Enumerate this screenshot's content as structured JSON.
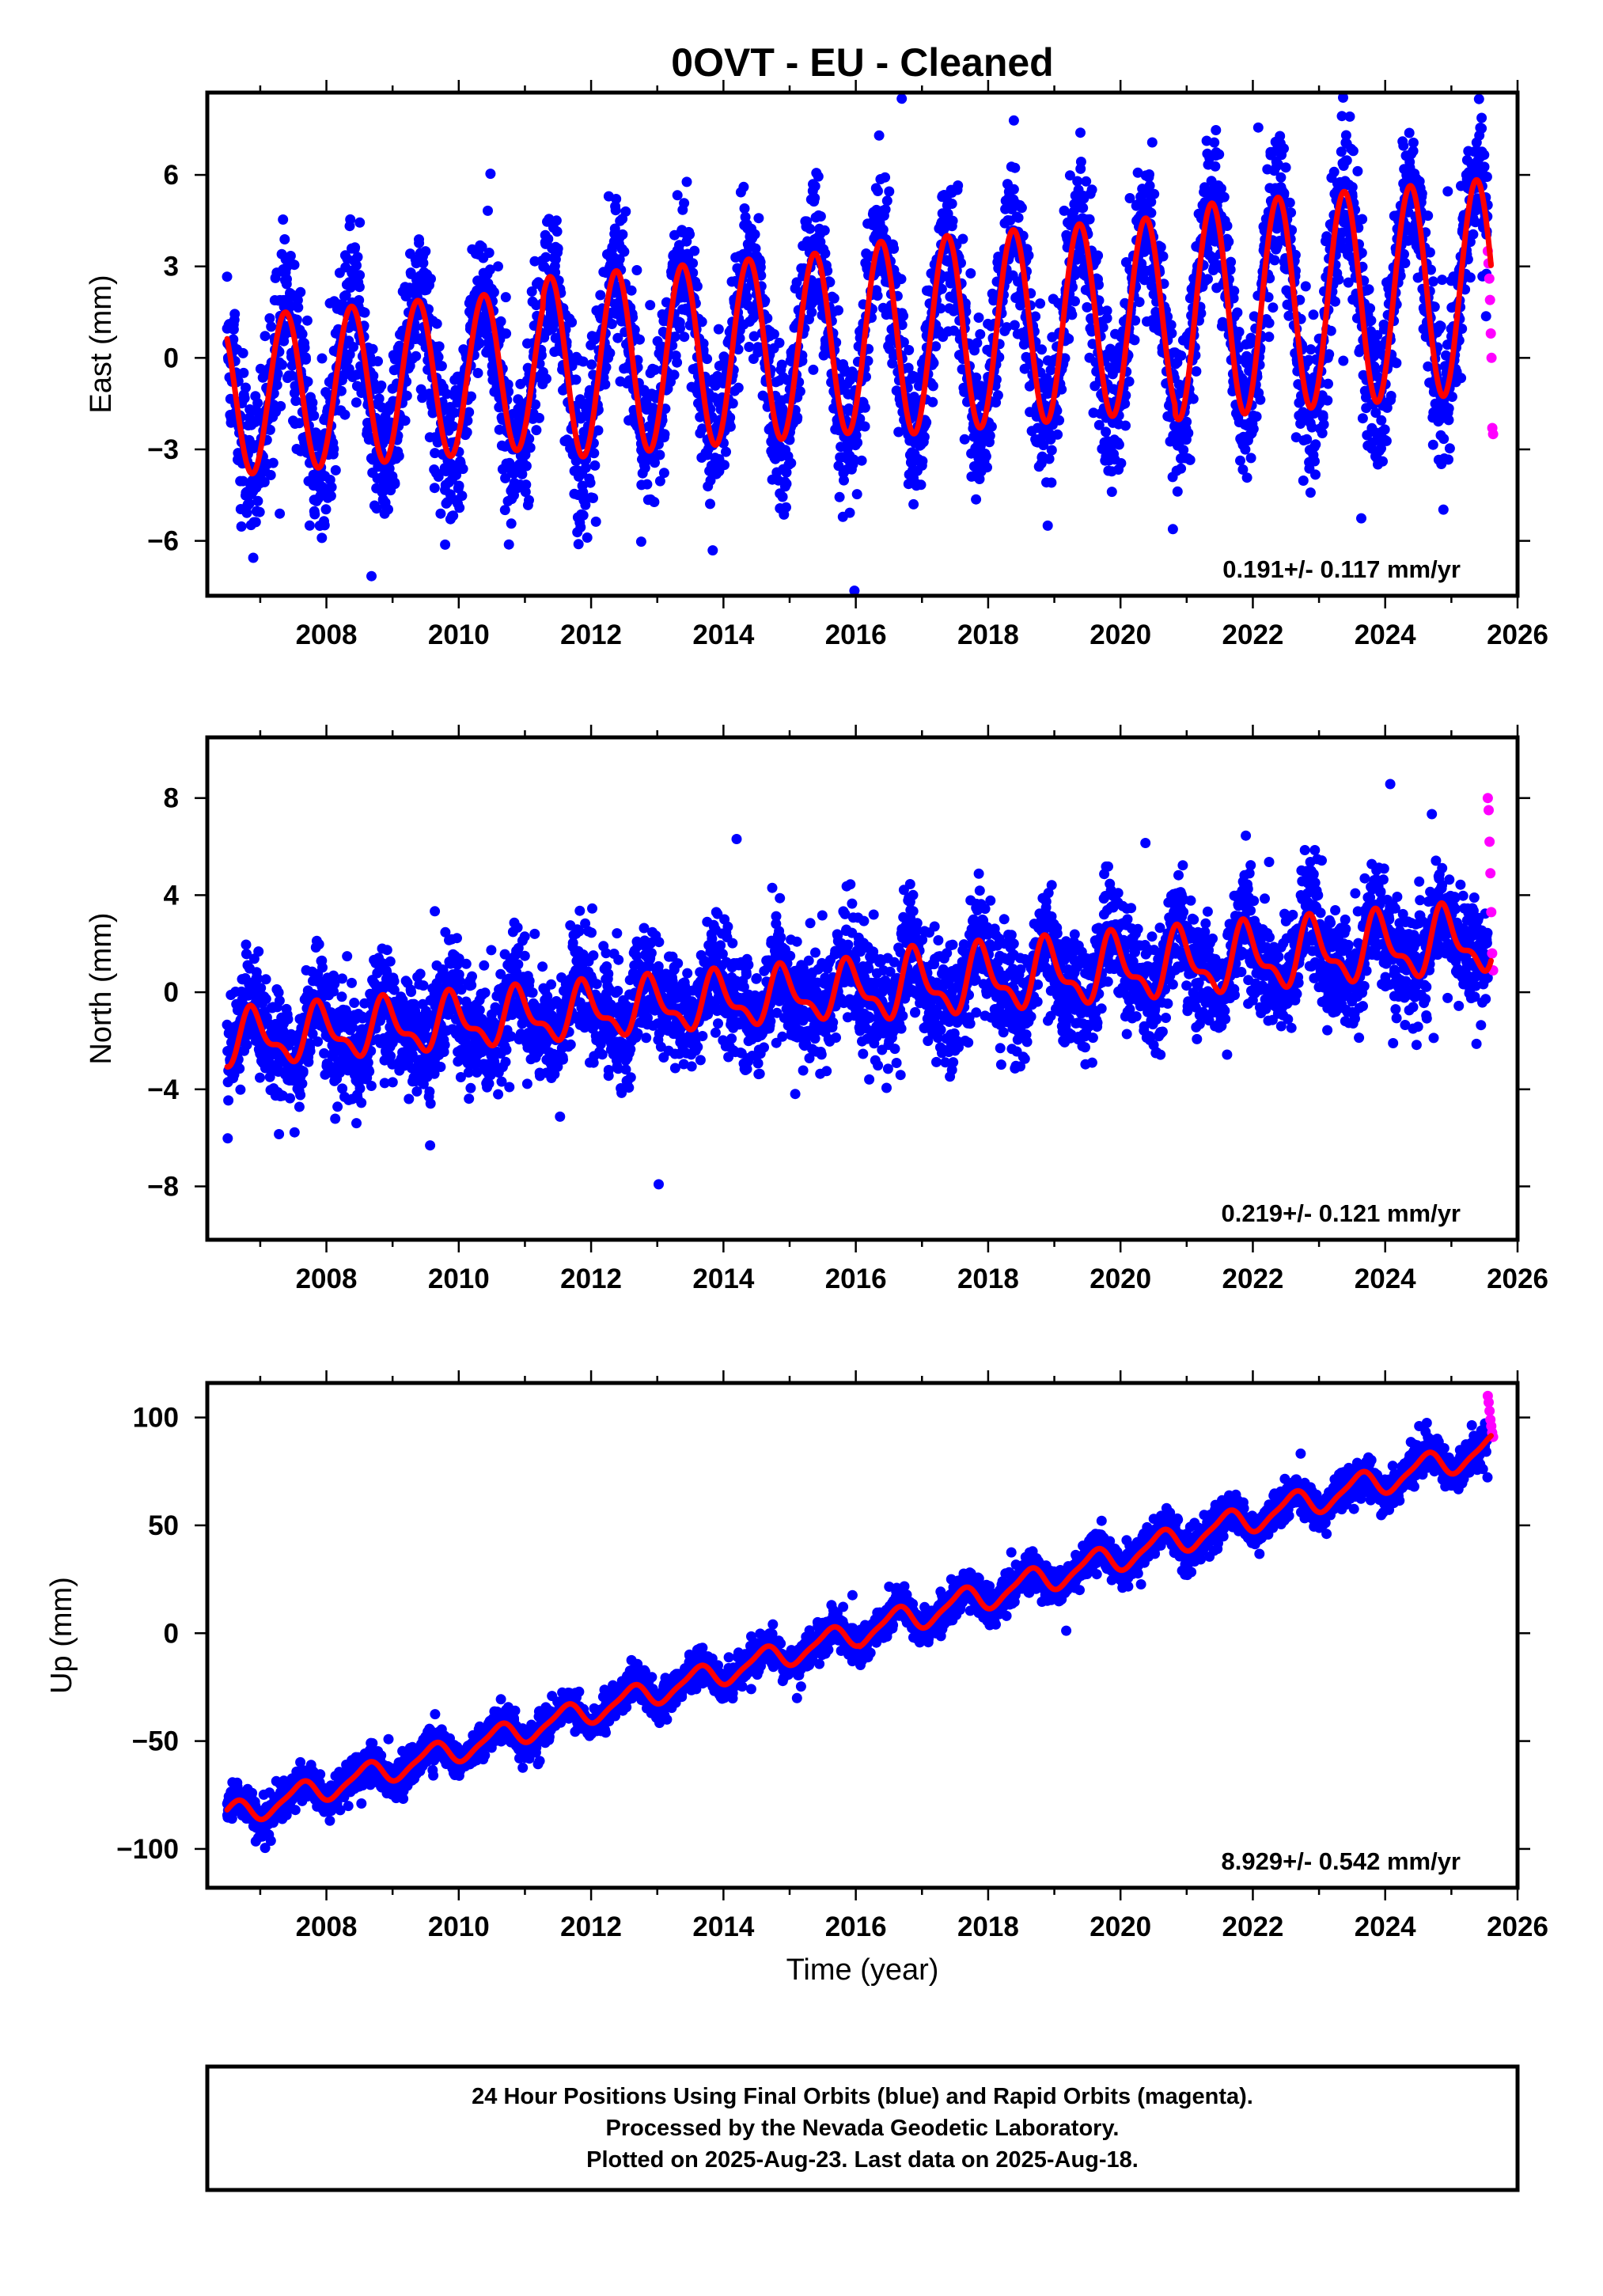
{
  "title": "0OVT  - EU - Cleaned",
  "chart_data": [
    {
      "type": "scatter",
      "component": "east",
      "ylabel": "East (mm)",
      "xlabel": "",
      "xlim": [
        2006.2,
        2026.0
      ],
      "ylim": [
        -7.8,
        8.7
      ],
      "xticks": [
        2008,
        2010,
        2012,
        2014,
        2016,
        2018,
        2020,
        2022,
        2024,
        2026
      ],
      "yticks": [
        -6,
        -3,
        0,
        3,
        6
      ],
      "rate_text": "0.191+/- 0.117 mm/yr",
      "grid": false,
      "model": {
        "start": 2006.5,
        "end": 2025.6,
        "offset": -1.27,
        "rate": 0.191,
        "seasonal_amplitude": [
          2.6,
          3.0,
          3.2,
          3.5
        ],
        "peak_phase": 0.38
      },
      "series": [
        {
          "name": "Final Orbits (blue)",
          "color": "#0000ff",
          "x_range": [
            2006.5,
            2025.55
          ],
          "scatter_mm": 1.25
        },
        {
          "name": "Rapid Orbits (magenta)",
          "color": "#ff00ff",
          "x_range": [
            2025.55,
            2025.63
          ],
          "y_values": [
            3.5,
            3.1,
            2.6,
            1.9,
            0.8,
            0.0,
            -2.3,
            -2.5
          ]
        },
        {
          "name": "model",
          "color": "#ff0000"
        }
      ]
    },
    {
      "type": "scatter",
      "component": "north",
      "ylabel": "North (mm)",
      "xlabel": "",
      "xlim": [
        2006.2,
        2026.0
      ],
      "ylim": [
        -10.2,
        10.5
      ],
      "xticks": [
        2008,
        2010,
        2012,
        2014,
        2016,
        2018,
        2020,
        2022,
        2024,
        2026
      ],
      "yticks": [
        -8,
        -4,
        0,
        4,
        8
      ],
      "rate_text": "0.219+/- 0.121 mm/yr",
      "grid": false,
      "model": {
        "start": 2006.5,
        "end": 2025.6,
        "offset": -2.0,
        "rate": 0.219,
        "seasonal_amplitude": [
          1.0,
          1.2
        ],
        "peak_phase": 0.9
      },
      "series": [
        {
          "name": "Final Orbits (blue)",
          "color": "#0000ff",
          "x_range": [
            2006.5,
            2025.55
          ],
          "scatter_mm": 1.15
        },
        {
          "name": "Rapid Orbits (magenta)",
          "color": "#ff00ff",
          "x_range": [
            2025.55,
            2025.63
          ],
          "y_values": [
            8.0,
            7.5,
            6.2,
            4.9,
            3.3,
            1.6,
            0.9
          ]
        },
        {
          "name": "model",
          "color": "#ff0000"
        }
      ]
    },
    {
      "type": "scatter",
      "component": "up",
      "ylabel": "Up (mm)",
      "xlabel": "Time (year)",
      "xlim": [
        2006.2,
        2026.0
      ],
      "ylim": [
        -118,
        116
      ],
      "xticks": [
        2008,
        2010,
        2012,
        2014,
        2016,
        2018,
        2020,
        2022,
        2024,
        2026
      ],
      "yticks": [
        -100,
        -50,
        0,
        50,
        100
      ],
      "rate_text": "8.929+/- 0.542 mm/yr",
      "grid": false,
      "model": {
        "start": 2006.5,
        "end": 2025.6,
        "offset": -85,
        "rate": 8.929,
        "seasonal_amplitude": [
          5.5,
          6.0
        ],
        "peak_phase": 0.6
      },
      "series": [
        {
          "name": "Final Orbits (blue)",
          "color": "#0000ff",
          "x_range": [
            2006.5,
            2025.55
          ],
          "scatter_mm": 4.0
        },
        {
          "name": "Rapid Orbits (magenta)",
          "color": "#ff00ff",
          "x_range": [
            2025.55,
            2025.63
          ],
          "y_values": [
            110,
            107,
            103,
            99,
            96,
            93,
            91
          ]
        },
        {
          "name": "model",
          "color": "#ff0000"
        }
      ]
    }
  ],
  "footer": {
    "line1": "24 Hour Positions Using Final Orbits (blue) and Rapid Orbits (magenta).",
    "line2": "Processed by the Nevada Geodetic Laboratory.",
    "line3": "Plotted on 2025-Aug-23. Last data on 2025-Aug-18."
  }
}
